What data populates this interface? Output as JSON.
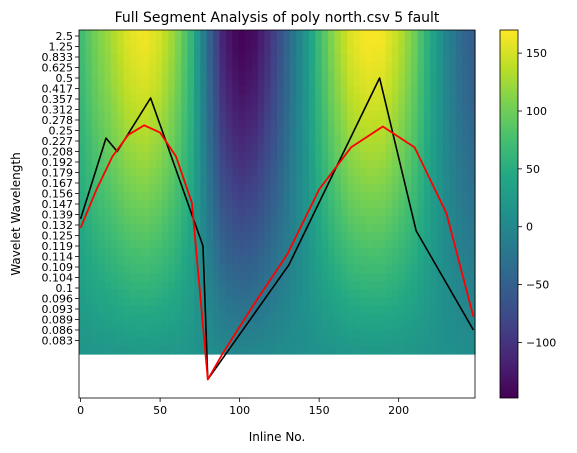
{
  "chart_data": {
    "type": "heatmap",
    "title": "Full Segment Analysis of poly north.csv 5 fault",
    "xlabel": "Inline No.",
    "ylabel": "Wavelet Wavelength",
    "xlim": [
      -1,
      248
    ],
    "x_ticks": [
      0,
      50,
      100,
      150,
      200
    ],
    "y_tick_labels": [
      "2.5",
      "1.25",
      "0.833",
      "0.625",
      "0.5",
      "0.417",
      "0.357",
      "0.312",
      "0.278",
      "0.25",
      "0.227",
      "0.208",
      "0.192",
      "0.179",
      "0.167",
      "0.156",
      "0.147",
      "0.139",
      "0.132",
      "0.125",
      "0.119",
      "0.114",
      "0.109",
      "0.104",
      "0.1",
      "0.096",
      "0.093",
      "0.089",
      "0.086",
      "0.083"
    ],
    "heatmap": {
      "colormap": "viridis",
      "vmin": -148,
      "vmax": 170,
      "profile_x": [
        0,
        10,
        20,
        30,
        40,
        50,
        60,
        70,
        80,
        90,
        100,
        110,
        120,
        130,
        140,
        150,
        160,
        170,
        180,
        190,
        200,
        210,
        220,
        230,
        240,
        247
      ],
      "profile_top": [
        70,
        105,
        130,
        155,
        165,
        150,
        115,
        60,
        -40,
        -120,
        -148,
        -135,
        -95,
        -45,
        10,
        70,
        120,
        155,
        168,
        165,
        140,
        100,
        45,
        -5,
        -40,
        -55
      ],
      "profile_bottom": [
        18,
        20,
        22,
        24,
        25,
        24,
        22,
        18,
        8,
        0,
        -3,
        -2,
        2,
        6,
        10,
        14,
        18,
        21,
        23,
        23,
        22,
        20,
        16,
        12,
        8,
        6
      ]
    },
    "colorbar_ticks": [
      150,
      100,
      50,
      0,
      -50,
      -100
    ],
    "series": [
      {
        "color": "#000000",
        "x": [
          0,
          16,
          23,
          44,
          77,
          80,
          131,
          188,
          211,
          247
        ],
        "y": [
          0.136,
          0.233,
          0.208,
          0.362,
          0.119,
          0.0735,
          0.11,
          0.5,
          0.128,
          0.086
        ]
      },
      {
        "color": "#ff0000",
        "x": [
          0,
          10,
          20,
          30,
          40,
          50,
          60,
          70,
          80,
          90,
          110,
          130,
          150,
          170,
          190,
          210,
          230,
          247
        ],
        "y": [
          0.13,
          0.16,
          0.2,
          0.24,
          0.263,
          0.245,
          0.2,
          0.148,
          0.0735,
          0.08,
          0.095,
          0.115,
          0.16,
          0.215,
          0.26,
          0.215,
          0.14,
          0.09
        ]
      }
    ]
  }
}
